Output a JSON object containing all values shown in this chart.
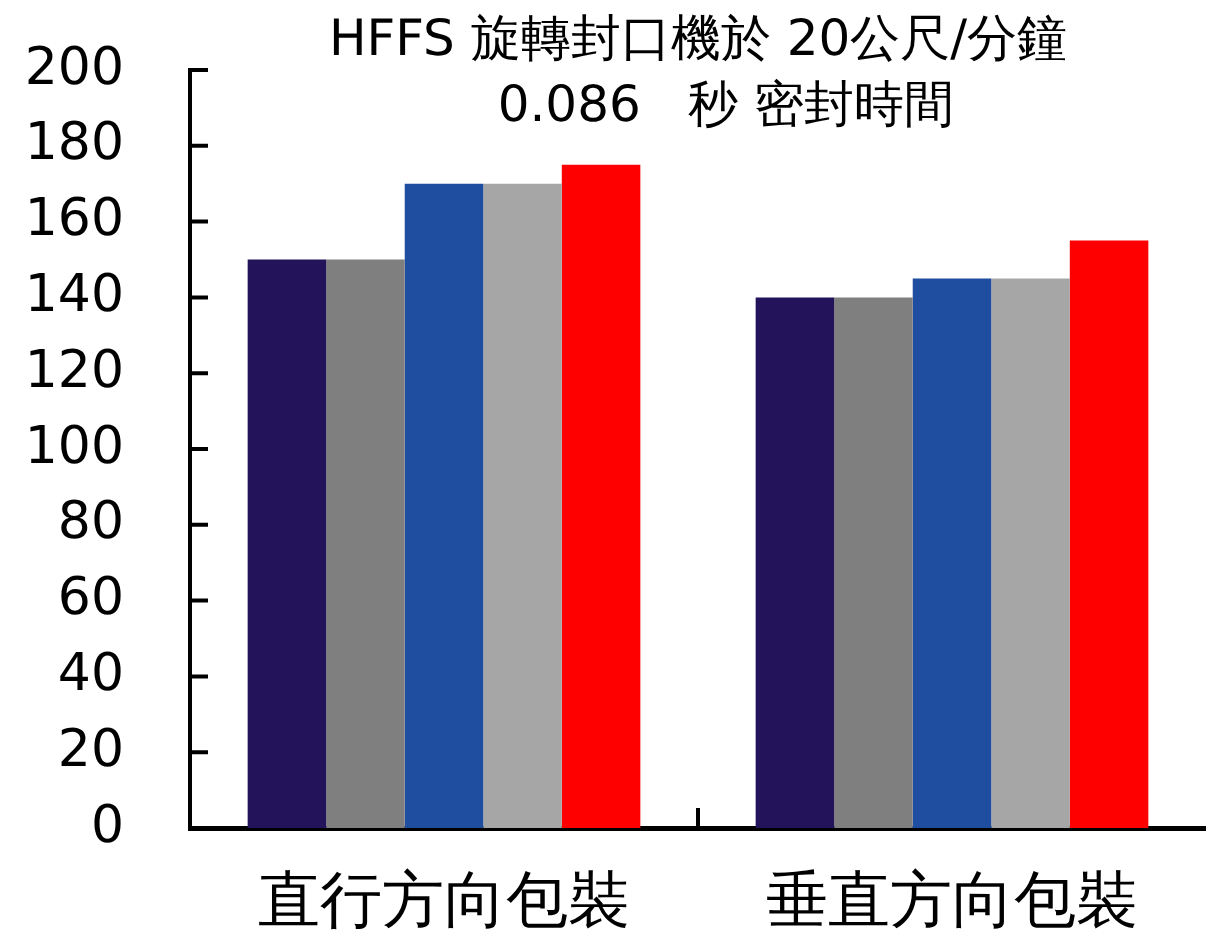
{
  "chart_data": {
    "type": "bar",
    "title": "HFFS 旋轉封口機於 20公尺/分鐘",
    "subtitle": "0.086   秒 密封時間",
    "categories": [
      "直行方向包裝",
      "垂直方向包裝"
    ],
    "series": [
      {
        "color": "#22135a",
        "values": [
          150,
          140
        ]
      },
      {
        "color": "#7f7f7f",
        "values": [
          150,
          140
        ]
      },
      {
        "color": "#1f4ea0",
        "values": [
          170,
          145
        ]
      },
      {
        "color": "#a6a6a6",
        "values": [
          170,
          145
        ]
      },
      {
        "color": "#ff0000",
        "values": [
          175,
          155
        ]
      }
    ],
    "ylim": [
      0,
      200
    ],
    "yticks": [
      0,
      20,
      40,
      60,
      80,
      100,
      120,
      140,
      160,
      180,
      200
    ]
  }
}
